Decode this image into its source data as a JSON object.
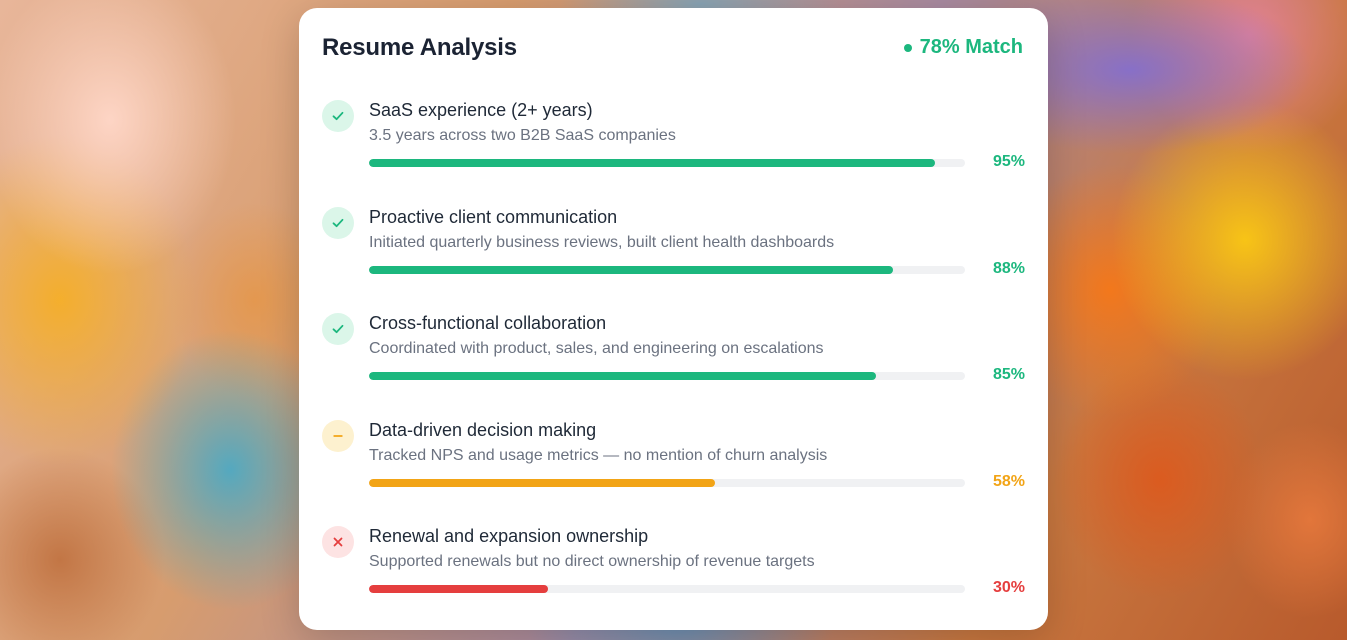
{
  "card": {
    "title": "Resume Analysis",
    "match_label": "78% Match",
    "match_color": "#1cb77e"
  },
  "items": [
    {
      "title": "SaaS experience (2+ years)",
      "description": "3.5 years across two B2B SaaS companies",
      "percent_label": "95%",
      "percent": 95,
      "status": "good",
      "icon": "check-icon",
      "color": "#1cb77e"
    },
    {
      "title": "Proactive client communication",
      "description": "Initiated quarterly business reviews, built client health dashboards",
      "percent_label": "88%",
      "percent": 88,
      "status": "good",
      "icon": "check-icon",
      "color": "#1cb77e"
    },
    {
      "title": "Cross-functional collaboration",
      "description": "Coordinated with product, sales, and engineering on escalations",
      "percent_label": "85%",
      "percent": 85,
      "status": "good",
      "icon": "check-icon",
      "color": "#1cb77e"
    },
    {
      "title": "Data-driven decision making",
      "description": "Tracked NPS and usage metrics — no mention of churn analysis",
      "percent_label": "58%",
      "percent": 58,
      "status": "warn",
      "icon": "minus-icon",
      "color": "#f2a416"
    },
    {
      "title": "Renewal and expansion ownership",
      "description": "Supported renewals but no direct ownership of revenue targets",
      "percent_label": "30%",
      "percent": 30,
      "status": "bad",
      "icon": "close-icon",
      "color": "#e53e3e"
    }
  ]
}
